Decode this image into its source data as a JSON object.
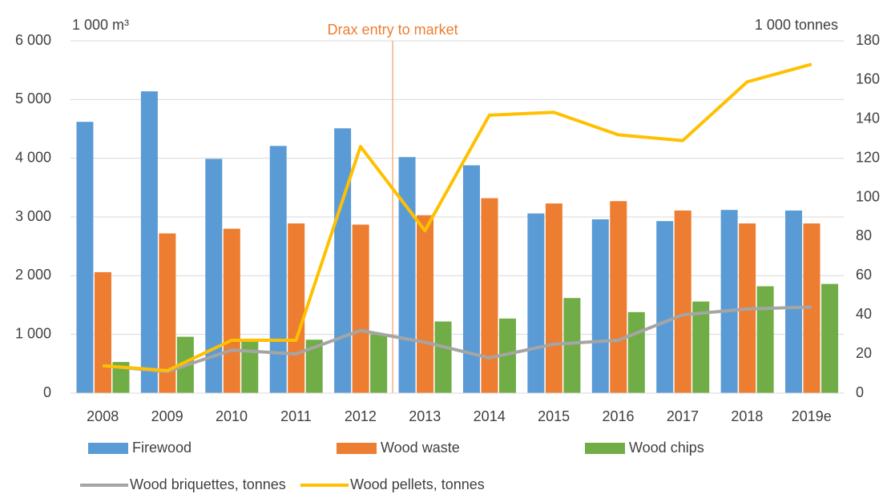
{
  "chart_data": {
    "type": "bar",
    "y_label": "1 000 m³",
    "y2_label": "1 000 tonnes",
    "annotation": "Drax entry to market",
    "categories": [
      "2008",
      "2009",
      "2010",
      "2011",
      "2012",
      "2013",
      "2014",
      "2015",
      "2016",
      "2017",
      "2018",
      "2019e"
    ],
    "series": [
      {
        "name": "Firewood",
        "color": "#5b9bd5",
        "type": "bar",
        "values": [
          4620,
          5140,
          3990,
          4210,
          4510,
          4020,
          3880,
          3060,
          2960,
          2930,
          3120,
          3110
        ]
      },
      {
        "name": "Wood waste",
        "color": "#ed7d31",
        "type": "bar",
        "values": [
          2060,
          2720,
          2800,
          2890,
          2870,
          3030,
          3320,
          3230,
          3270,
          3110,
          2890,
          2890
        ]
      },
      {
        "name": "Wood chips",
        "color": "#70ad47",
        "type": "bar",
        "values": [
          530,
          960,
          880,
          910,
          1000,
          1220,
          1270,
          1620,
          1380,
          1560,
          1820,
          1860
        ]
      },
      {
        "name": "Wood briquettes, tonnes",
        "color": "#a5a5a5",
        "type": "line",
        "axis": "y2",
        "values": [
          14,
          11,
          22,
          20,
          32,
          26,
          18,
          25,
          27,
          40,
          43,
          44
        ]
      },
      {
        "name": "Wood pellets, tonnes",
        "color": "#ffc000",
        "type": "line",
        "axis": "y2",
        "values": [
          14,
          11.5,
          27,
          27,
          126,
          83,
          142,
          143.5,
          132,
          129,
          159,
          168
        ]
      }
    ],
    "ylim": [
      0,
      6000
    ],
    "yticks": [
      {
        "value": 0,
        "label": "0"
      },
      {
        "value": 1000,
        "label": "1 000"
      },
      {
        "value": 2000,
        "label": "2 000"
      },
      {
        "value": 3000,
        "label": "3 000"
      },
      {
        "value": 4000,
        "label": "4 000"
      },
      {
        "value": 5000,
        "label": "5 000"
      },
      {
        "value": 6000,
        "label": "6 000"
      }
    ],
    "y2lim": [
      0,
      180
    ],
    "y2ticks": [
      0,
      20,
      40,
      60,
      80,
      100,
      120,
      140,
      160,
      180
    ],
    "grid": true
  }
}
